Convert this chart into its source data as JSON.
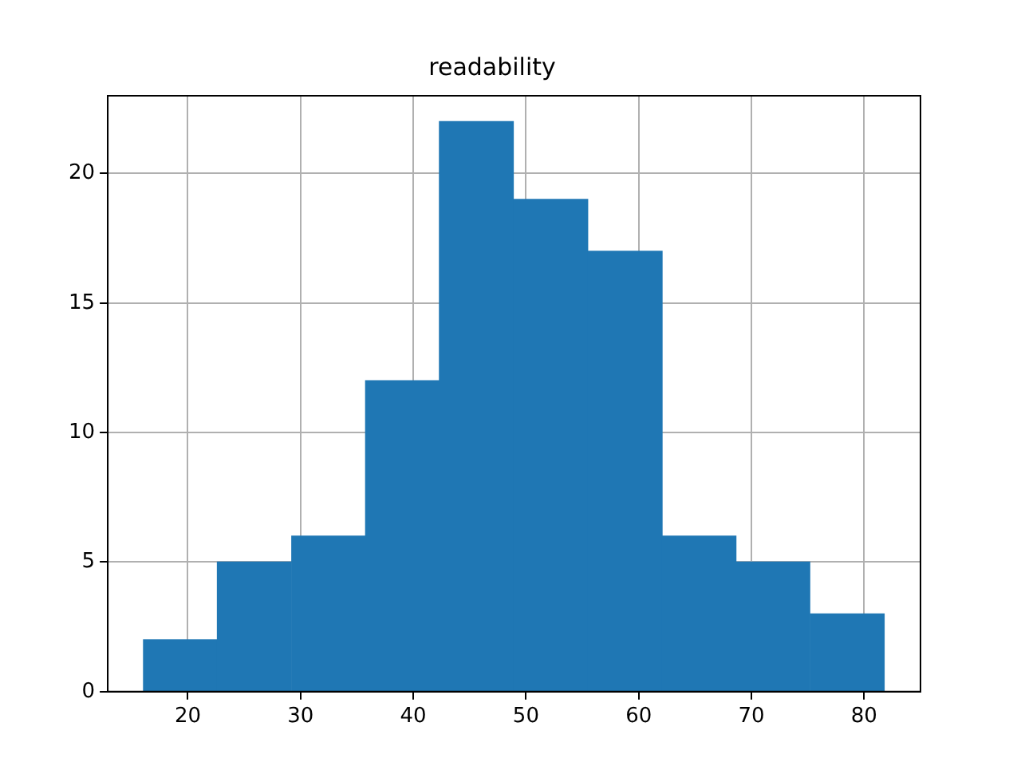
{
  "chart_data": {
    "type": "histogram",
    "title": "readability",
    "bins": [
      16.1,
      22.6,
      29.2,
      35.8,
      42.3,
      48.9,
      55.5,
      62.1,
      68.6,
      75.2,
      81.8
    ],
    "values": [
      2,
      5,
      6,
      12,
      22,
      19,
      17,
      6,
      5,
      3
    ],
    "color": "#1f77b4",
    "xlim": [
      12.9,
      85.0
    ],
    "xticks": [
      20,
      30,
      40,
      50,
      60,
      70,
      80
    ],
    "ylim": [
      0,
      23.0
    ],
    "yticks": [
      0,
      5,
      10,
      15,
      20
    ],
    "grid": true
  }
}
